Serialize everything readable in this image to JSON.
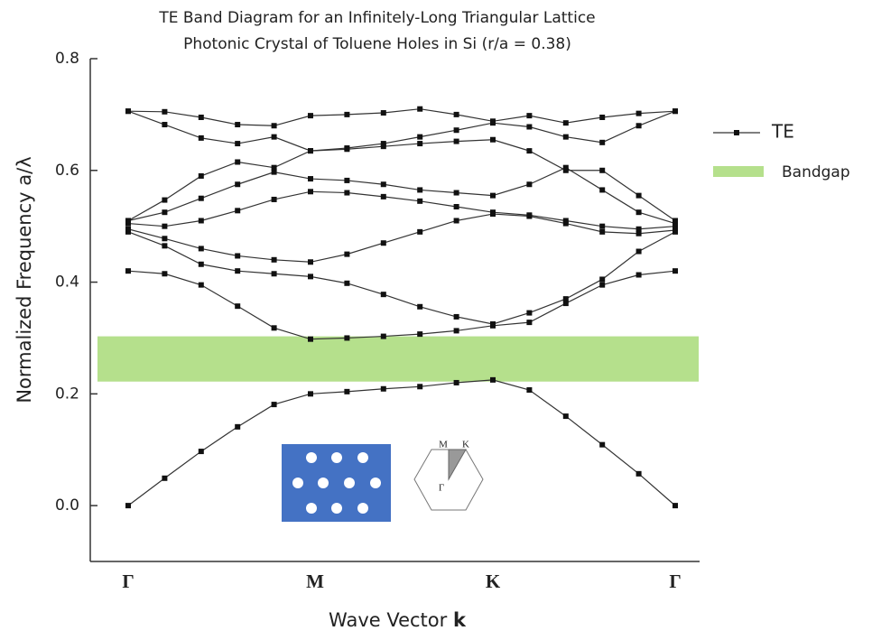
{
  "chart_data": {
    "type": "line",
    "title": [
      "TE Band Diagram for an Infinitely-Long Triangular Lattice",
      "Photonic Crystal of Toluene Holes in Si (r/a = 0.38)"
    ],
    "ylabel": "Normalized Frequency a/λ",
    "xlabel": [
      "Wave Vector",
      "k"
    ],
    "categories": [
      "Γ",
      null,
      null,
      null,
      null,
      "M",
      null,
      null,
      null,
      null,
      "K",
      null,
      null,
      null,
      null,
      "Γ"
    ],
    "series": [
      {
        "name": "TE",
        "color": "#333333",
        "bands": [
          [
            0,
            0.049,
            0.097,
            0.141,
            0.181,
            0.2,
            0.204,
            0.209,
            0.213,
            0.22,
            0.225,
            0.207,
            0.16,
            0.109,
            0.057,
            0
          ],
          [
            0.42,
            0.415,
            0.395,
            0.357,
            0.318,
            0.298,
            0.3,
            0.303,
            0.307,
            0.313,
            0.322,
            0.328,
            0.362,
            0.395,
            0.413,
            0.42
          ],
          [
            0.49,
            0.465,
            0.432,
            0.42,
            0.415,
            0.41,
            0.398,
            0.378,
            0.356,
            0.338,
            0.325,
            0.345,
            0.37,
            0.405,
            0.455,
            0.49
          ],
          [
            0.495,
            0.478,
            0.46,
            0.447,
            0.44,
            0.436,
            0.45,
            0.47,
            0.49,
            0.51,
            0.522,
            0.518,
            0.505,
            0.49,
            0.487,
            0.493
          ],
          [
            0.505,
            0.5,
            0.51,
            0.528,
            0.548,
            0.562,
            0.56,
            0.553,
            0.545,
            0.535,
            0.525,
            0.52,
            0.51,
            0.5,
            0.495,
            0.5
          ],
          [
            0.51,
            0.525,
            0.55,
            0.575,
            0.597,
            0.585,
            0.582,
            0.575,
            0.565,
            0.56,
            0.555,
            0.575,
            0.605,
            0.565,
            0.525,
            0.505
          ],
          [
            0.51,
            0.547,
            0.59,
            0.615,
            0.605,
            0.635,
            0.638,
            0.643,
            0.648,
            0.652,
            0.655,
            0.635,
            0.6,
            0.6,
            0.555,
            0.51
          ],
          [
            0.706,
            0.682,
            0.658,
            0.648,
            0.66,
            0.635,
            0.64,
            0.648,
            0.66,
            0.672,
            0.685,
            0.678,
            0.66,
            0.65,
            0.68,
            0.706
          ],
          [
            0.706,
            0.705,
            0.695,
            0.682,
            0.68,
            0.698,
            0.7,
            0.703,
            0.71,
            0.7,
            0.688,
            0.698,
            0.685,
            0.695,
            0.702,
            0.706
          ]
        ]
      }
    ],
    "bandgap": {
      "name": "Bandgap",
      "range": [
        0.222,
        0.303
      ],
      "color": "#b5e08c"
    },
    "inset_labels": [
      "M",
      "K",
      "Γ"
    ],
    "ylim": [
      -0.1,
      0.8
    ],
    "yticks": [
      {
        "value": 0,
        "label": "0.0"
      },
      0.2,
      0.4,
      0.6,
      0.8
    ]
  }
}
